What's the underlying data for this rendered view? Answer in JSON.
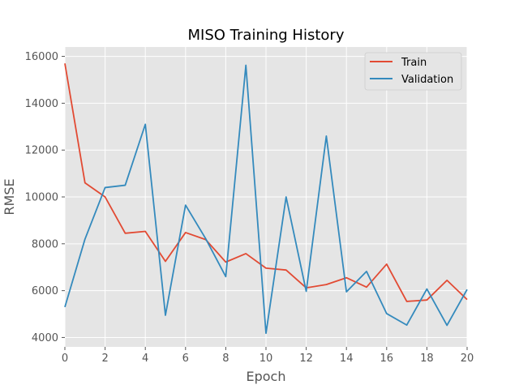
{
  "chart_data": {
    "type": "line",
    "title": "MISO Training History",
    "xlabel": "Epoch",
    "ylabel": "RMSE",
    "xlim": [
      0,
      20
    ],
    "ylim": [
      3600,
      16400
    ],
    "xticks": [
      0,
      2,
      4,
      6,
      8,
      10,
      12,
      14,
      16,
      18,
      20
    ],
    "yticks": [
      4000,
      6000,
      8000,
      10000,
      12000,
      14000,
      16000
    ],
    "grid": true,
    "legend_position": "top-right",
    "style": "ggplot",
    "x": [
      0,
      1,
      2,
      3,
      4,
      5,
      6,
      7,
      8,
      9,
      10,
      11,
      12,
      13,
      14,
      15,
      16,
      17,
      18,
      19,
      20
    ],
    "series": [
      {
        "name": "Train",
        "color": "#E24A33",
        "values": [
          15700,
          10600,
          10000,
          8450,
          8530,
          7250,
          8480,
          8180,
          7220,
          7580,
          6960,
          6880,
          6120,
          6260,
          6550,
          6150,
          7130,
          5540,
          5600,
          6440,
          5620
        ]
      },
      {
        "name": "Validation",
        "color": "#348ABD",
        "values": [
          5300,
          8200,
          10400,
          10500,
          13100,
          4950,
          9650,
          8220,
          6600,
          15620,
          4180,
          10000,
          5970,
          12600,
          5950,
          6820,
          5020,
          4530,
          6070,
          4520,
          6050
        ]
      }
    ]
  }
}
